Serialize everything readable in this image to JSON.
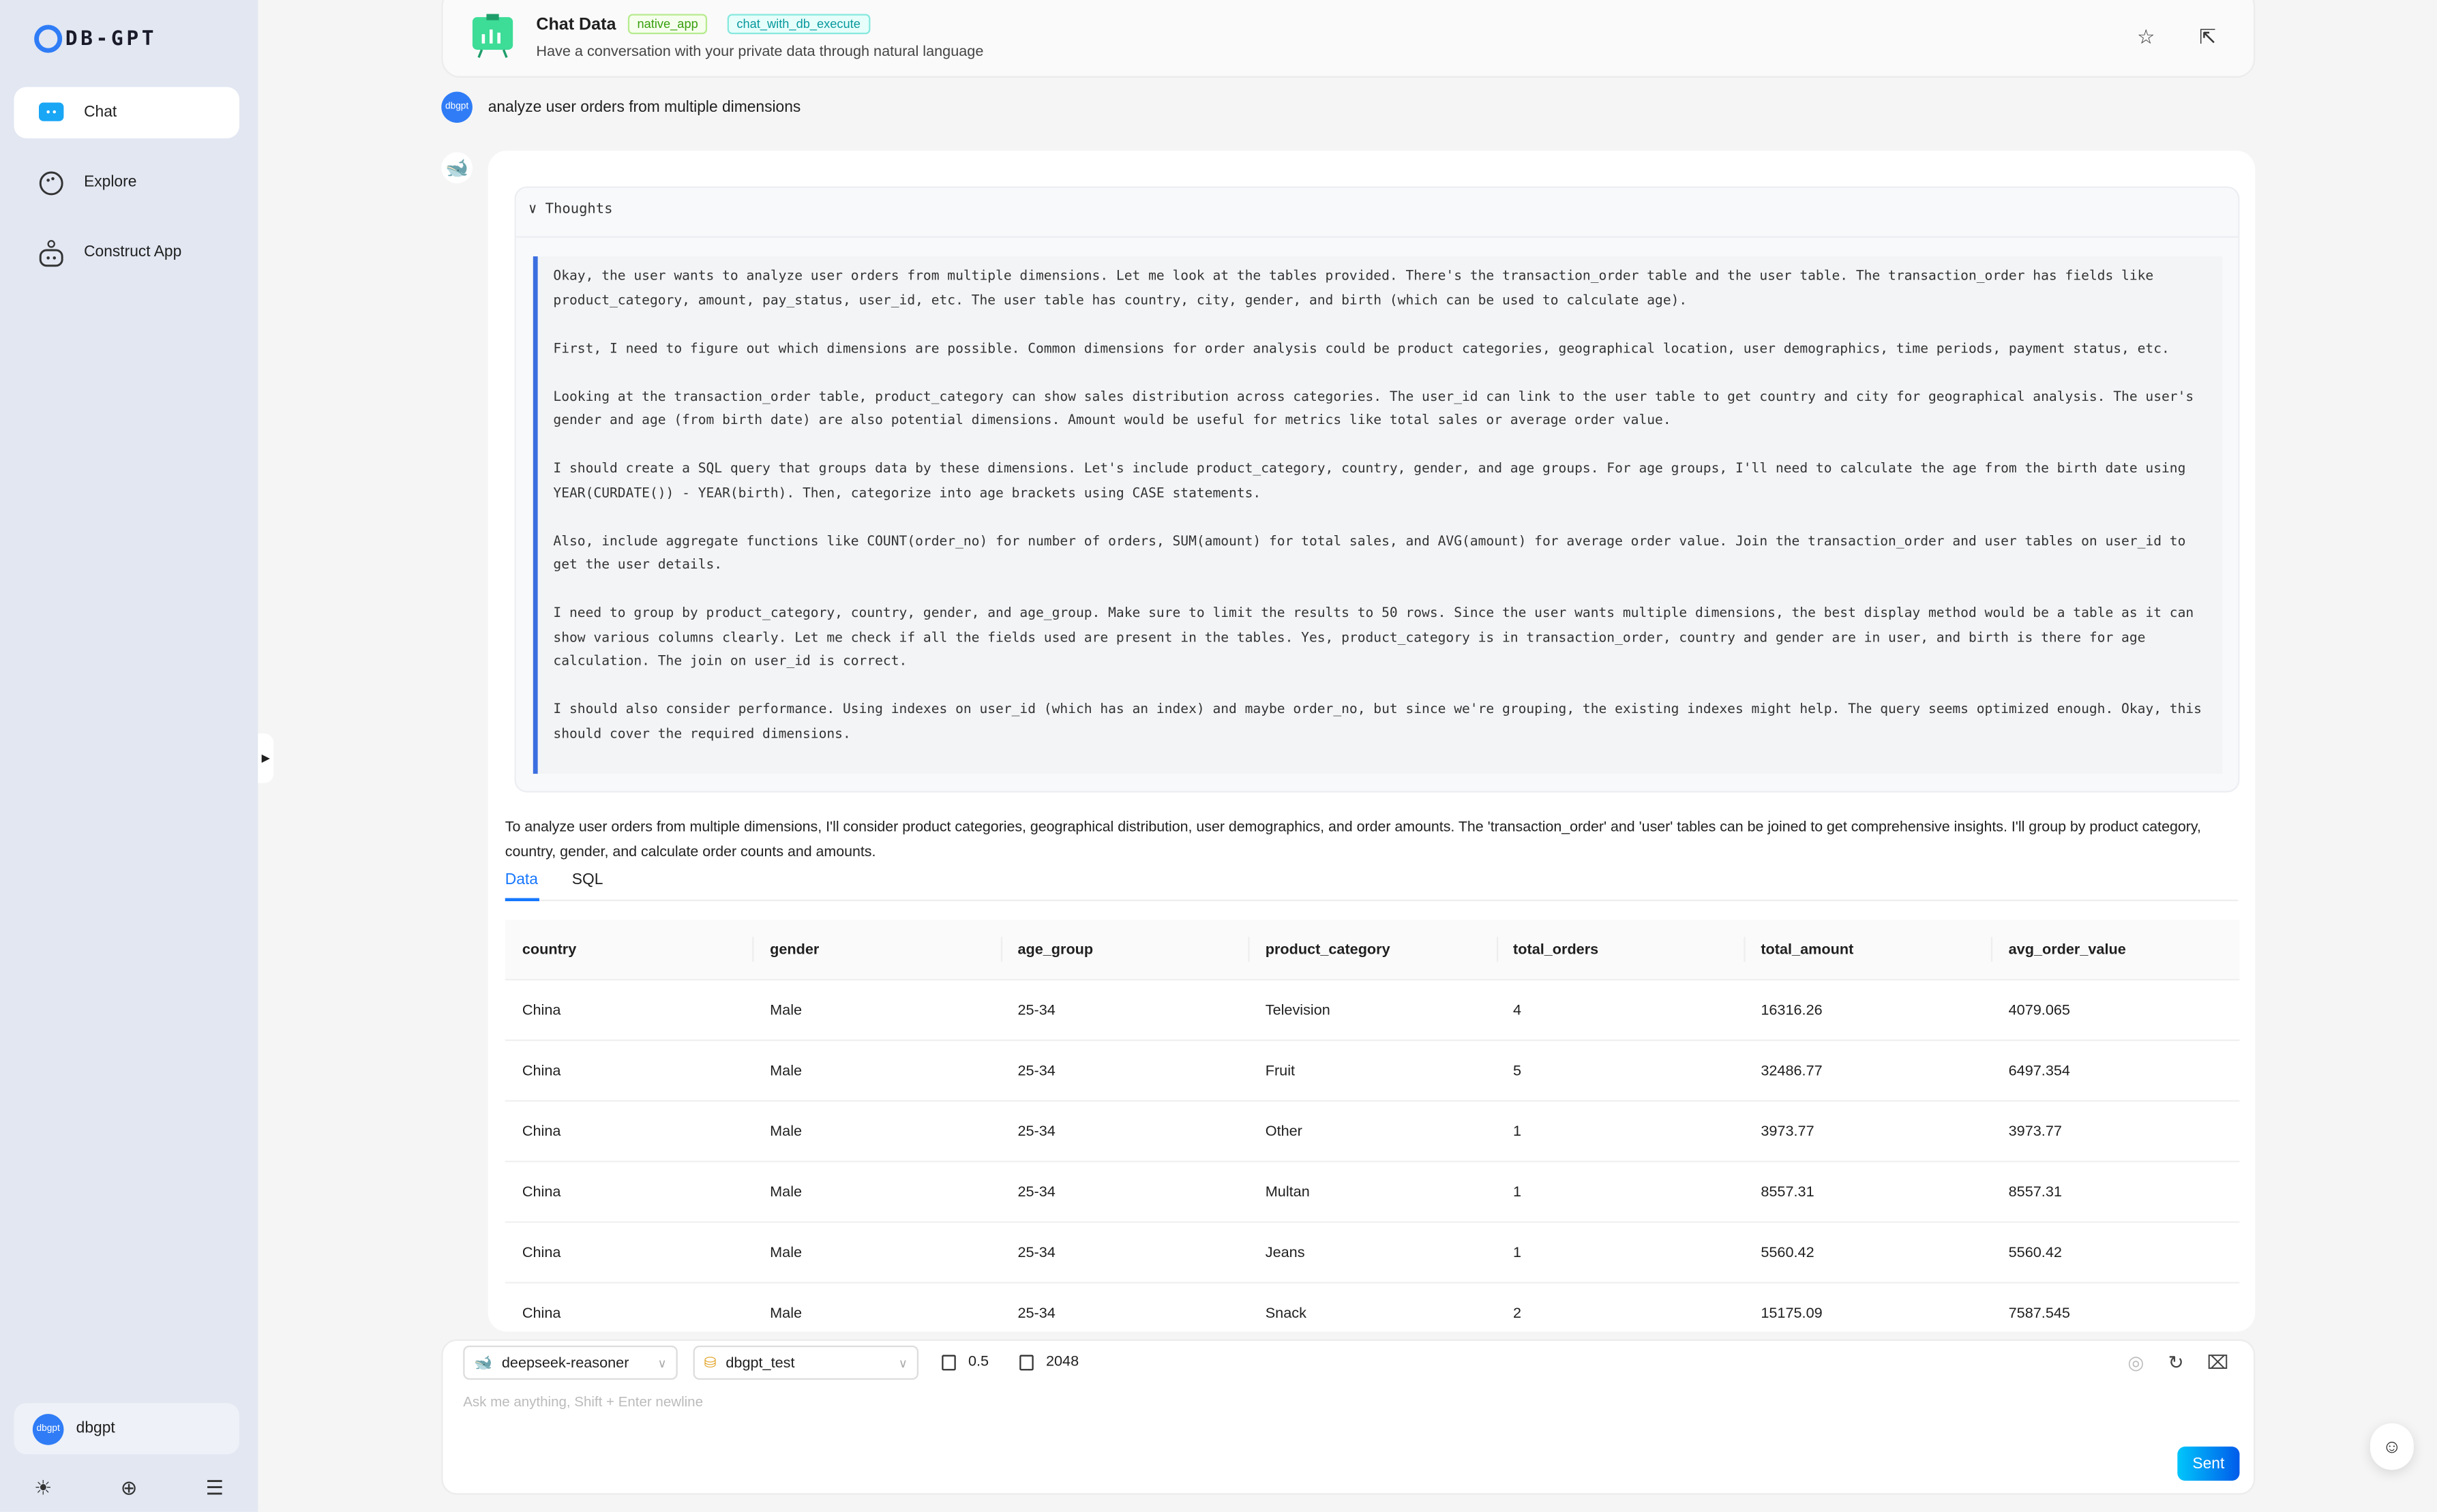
{
  "sidebar": {
    "logo": "DB-GPT",
    "items": [
      {
        "label": "Chat",
        "icon": "chat-icon"
      },
      {
        "label": "Explore",
        "icon": "explore-icon"
      },
      {
        "label": "Construct App",
        "icon": "robot-icon"
      }
    ],
    "user": {
      "avatar": "dbgpt",
      "name": "dbgpt"
    },
    "bottom_icons": [
      "sun-icon",
      "globe-icon",
      "menu-fold-icon"
    ]
  },
  "header": {
    "title": "Chat Data",
    "tags": [
      "native_app",
      "chat_with_db_execute"
    ],
    "subtitle": "Have a conversation with your private data through natural language"
  },
  "user_message": {
    "avatar": "dbgpt",
    "text": "analyze user orders from multiple dimensions"
  },
  "thoughts": {
    "label": "Thoughts",
    "paragraphs": [
      "Okay, the user wants to analyze user orders from multiple dimensions. Let me look at the tables provided. There's the transaction_order table and the user table. The transaction_order has fields like product_category, amount, pay_status, user_id, etc. The user table has country, city, gender, and birth (which can be used to calculate age).",
      "First, I need to figure out which dimensions are possible. Common dimensions for order analysis could be product categories, geographical location, user demographics, time periods, payment status, etc.",
      "Looking at the transaction_order table, product_category can show sales distribution across categories. The user_id can link to the user table to get country and city for geographical analysis. The user's gender and age (from birth date) are also potential dimensions. Amount would be useful for metrics like total sales or average order value.",
      "I should create a SQL query that groups data by these dimensions. Let's include product_category, country, gender, and age groups. For age groups, I'll need to calculate the age from the birth date using YEAR(CURDATE()) - YEAR(birth). Then, categorize into age brackets using CASE statements.",
      "Also, include aggregate functions like COUNT(order_no) for number of orders, SUM(amount) for total sales, and AVG(amount) for average order value. Join the transaction_order and user tables on user_id to get the user details.",
      "I need to group by product_category, country, gender, and age_group. Make sure to limit the results to 50 rows. Since the user wants multiple dimensions, the best display method would be a table as it can show various columns clearly. Let me check if all the fields used are present in the tables. Yes, product_category is in transaction_order, country and gender are in user, and birth is there for age calculation. The join on user_id is correct.",
      "I should also consider performance. Using indexes on user_id (which has an index) and maybe order_no, but since we're grouping, the existing indexes might help. The query seems optimized enough. Okay, this should cover the required dimensions."
    ]
  },
  "summary": "To analyze user orders from multiple dimensions, I'll consider product categories, geographical distribution, user demographics, and order amounts. The 'transaction_order' and 'user' tables can be joined to get comprehensive insights. I'll group by product category, country, gender, and calculate order counts and amounts.",
  "tabs": [
    {
      "label": "Data",
      "active": true
    },
    {
      "label": "SQL",
      "active": false
    }
  ],
  "table": {
    "columns": [
      "country",
      "gender",
      "age_group",
      "product_category",
      "total_orders",
      "total_amount",
      "avg_order_value"
    ],
    "rows": [
      [
        "China",
        "Male",
        "25-34",
        "Television",
        "4",
        "16316.26",
        "4079.065"
      ],
      [
        "China",
        "Male",
        "25-34",
        "Fruit",
        "5",
        "32486.77",
        "6497.354"
      ],
      [
        "China",
        "Male",
        "25-34",
        "Other",
        "1",
        "3973.77",
        "3973.77"
      ],
      [
        "China",
        "Male",
        "25-34",
        "Multan",
        "1",
        "8557.31",
        "8557.31"
      ],
      [
        "China",
        "Male",
        "25-34",
        "Jeans",
        "1",
        "5560.42",
        "5560.42"
      ],
      [
        "China",
        "Male",
        "25-34",
        "Snack",
        "2",
        "15175.09",
        "7587.545"
      ]
    ]
  },
  "input": {
    "model": "deepseek-reasoner",
    "database": "dbgpt_test",
    "temperature": "0.5",
    "max_tokens": "2048",
    "placeholder": "Ask me anything, Shift + Enter newline",
    "send_label": "Sent"
  },
  "colors": {
    "accent": "#1677ff",
    "sidebar_bg": "#e2e7f2",
    "thought_border": "#3b6fe0"
  }
}
